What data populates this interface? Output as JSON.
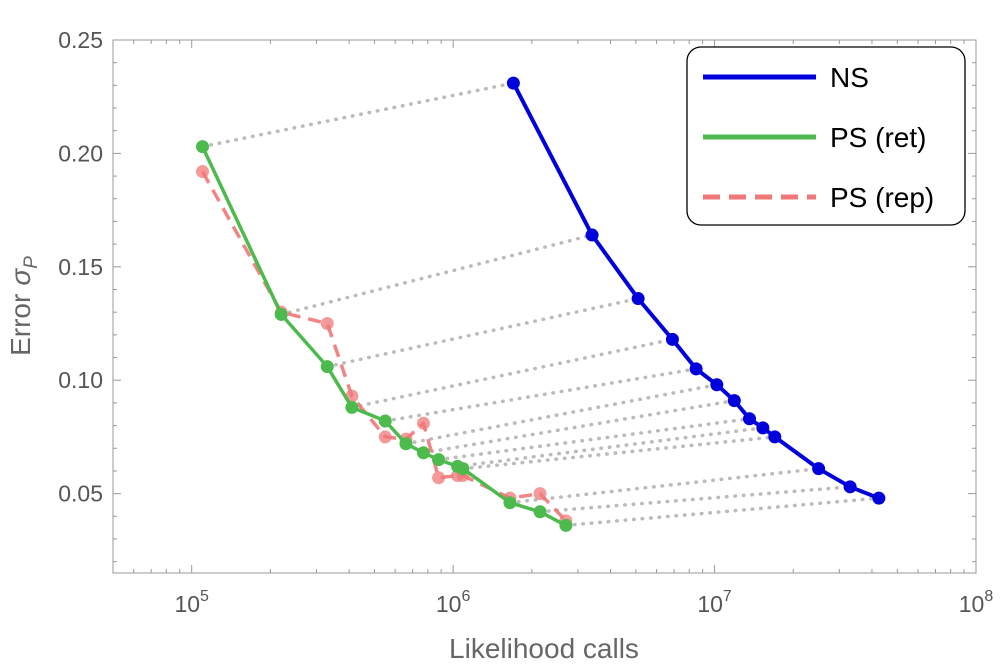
{
  "chart_data": {
    "type": "line",
    "title": "",
    "xlabel": "Likelihood calls",
    "ylabel": "Error",
    "ylabel_symbol": "σ",
    "ylabel_subscript": "P",
    "x_scale": "log",
    "xlim": [
      50000,
      100000000
    ],
    "ylim": [
      0.015,
      0.25
    ],
    "x_ticks": [
      {
        "base": "10",
        "exp": "5",
        "value": 100000
      },
      {
        "base": "10",
        "exp": "6",
        "value": 1000000
      },
      {
        "base": "10",
        "exp": "7",
        "value": 10000000
      },
      {
        "base": "10",
        "exp": "8",
        "value": 100000000
      }
    ],
    "y_ticks": [
      {
        "label": "0.05",
        "value": 0.05
      },
      {
        "label": "0.10",
        "value": 0.1
      },
      {
        "label": "0.15",
        "value": 0.15
      },
      {
        "label": "0.20",
        "value": 0.2
      },
      {
        "label": "0.25",
        "value": 0.25
      }
    ],
    "legend_position": "top-right",
    "series": [
      {
        "name": "NS",
        "color": "#0000dd",
        "style": "solid",
        "x": [
          1700000,
          3400000,
          5100000,
          6900000,
          8500000,
          10200000,
          11900000,
          13600000,
          15300000,
          17000000,
          25000000,
          33000000,
          42500000
        ],
        "y": [
          0.231,
          0.164,
          0.136,
          0.118,
          0.105,
          0.098,
          0.091,
          0.083,
          0.079,
          0.075,
          0.061,
          0.053,
          0.048
        ]
      },
      {
        "name": "PS (ret)",
        "color": "#4cba4c",
        "style": "solid",
        "x": [
          110000,
          220000,
          330000,
          410000,
          550000,
          660000,
          770000,
          880000,
          1040000,
          1090000,
          1650000,
          2150000,
          2700000
        ],
        "y": [
          0.203,
          0.129,
          0.106,
          0.088,
          0.082,
          0.072,
          0.068,
          0.065,
          0.062,
          0.061,
          0.046,
          0.042,
          0.036
        ]
      },
      {
        "name": "PS (rep)",
        "color": "#f07878",
        "style": "dashed",
        "x": [
          110000,
          220000,
          330000,
          410000,
          550000,
          660000,
          770000,
          880000,
          1040000,
          1090000,
          1650000,
          2150000,
          2700000
        ],
        "y": [
          0.192,
          0.13,
          0.125,
          0.093,
          0.075,
          0.074,
          0.081,
          0.057,
          0.058,
          0.058,
          0.048,
          0.05,
          0.038
        ]
      }
    ],
    "connectors": {
      "style": "dotted",
      "color": "#bbbbbb",
      "from_series": "PS (ret)",
      "to_series": "NS"
    }
  }
}
